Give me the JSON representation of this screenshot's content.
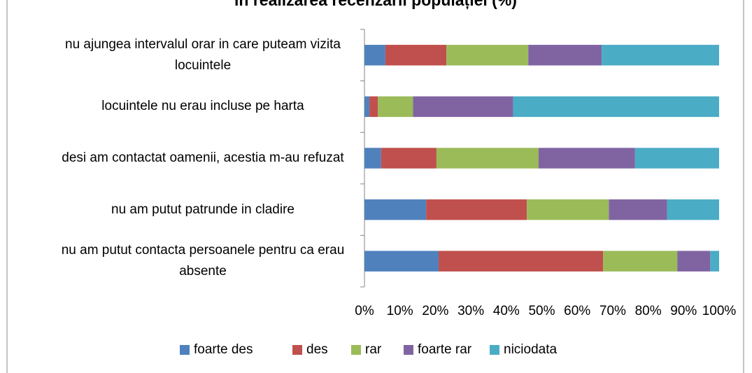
{
  "chart_data": {
    "type": "stacked-barh",
    "title": "in realizarea recenzarii populației (%)",
    "categories": [
      "nu ajungea intervalul orar in care puteam vizita locuintele",
      "locuintele nu erau incluse pe harta",
      "desi am contactat oamenii, acestia m-au refuzat",
      "nu am putut patrunde in cladire",
      "nu am putut contacta persoanele pentru ca erau absente"
    ],
    "series": [
      {
        "name": "foarte des",
        "color": "#4f81bd",
        "values": [
          5.9,
          1.4,
          4.7,
          17.4,
          20.9
        ]
      },
      {
        "name": "des",
        "color": "#c0504d",
        "values": [
          17.2,
          2.4,
          15.6,
          28.4,
          46.4
        ]
      },
      {
        "name": "rar",
        "color": "#9bbb59",
        "values": [
          23.1,
          9.9,
          28.8,
          23.1,
          20.9
        ]
      },
      {
        "name": "foarte rar",
        "color": "#8064a2",
        "values": [
          20.7,
          28.2,
          27.2,
          16.4,
          9.3
        ]
      },
      {
        "name": "niciodata",
        "color": "#4bacc6",
        "values": [
          33.1,
          58.1,
          23.7,
          14.7,
          2.5
        ]
      }
    ],
    "xlim": [
      0,
      100
    ],
    "xticks": [
      {
        "value": 0,
        "label": "0%"
      },
      {
        "value": 10,
        "label": "10%"
      },
      {
        "value": 20,
        "label": "20%"
      },
      {
        "value": 30,
        "label": "30%"
      },
      {
        "value": 40,
        "label": "40%"
      },
      {
        "value": 50,
        "label": "50%"
      },
      {
        "value": 60,
        "label": "60%"
      },
      {
        "value": 70,
        "label": "70%"
      },
      {
        "value": 80,
        "label": "80%"
      },
      {
        "value": 90,
        "label": "90%"
      },
      {
        "value": 100,
        "label": "100%"
      }
    ],
    "legend": "bottom"
  }
}
